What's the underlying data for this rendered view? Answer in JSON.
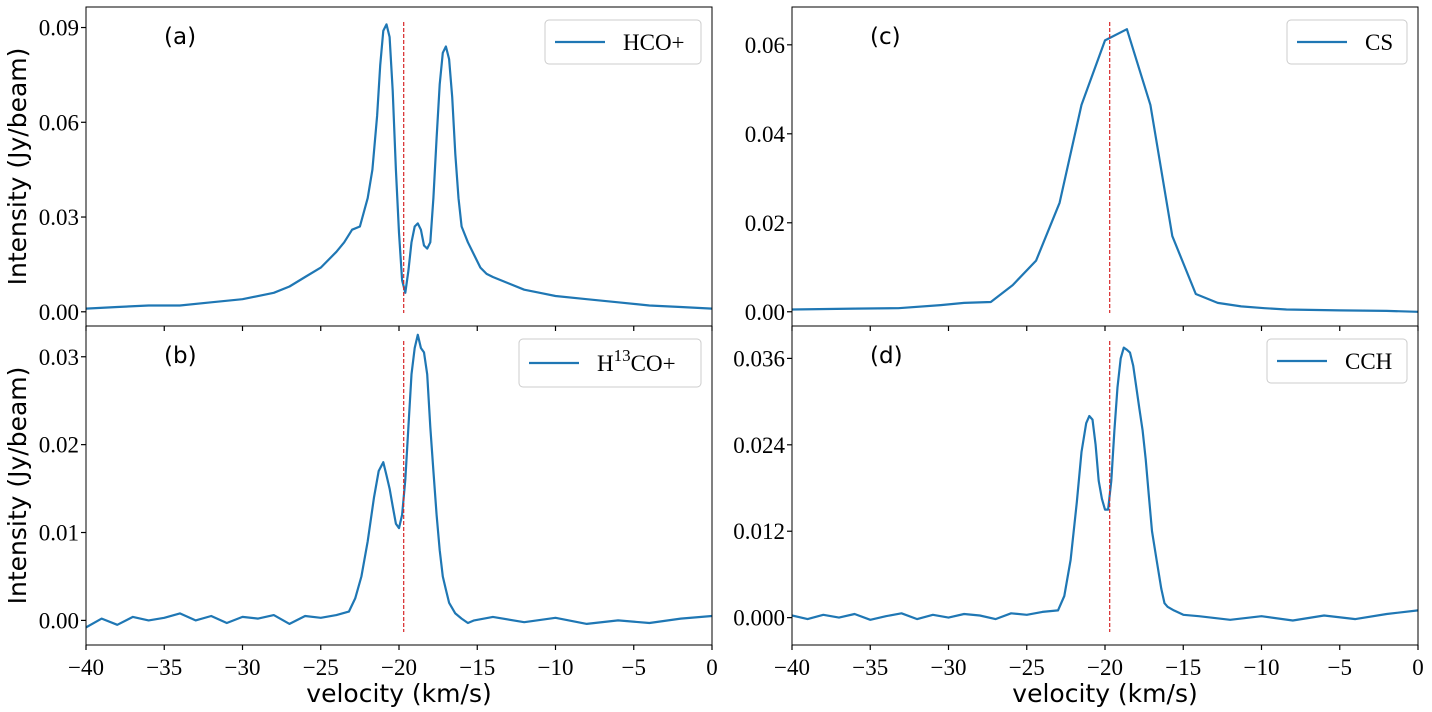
{
  "chart_data": [
    {
      "id": "a",
      "type": "line",
      "panel_label": "(a)",
      "ylabel": "Intensity (Jy/beam)",
      "xlabel": "",
      "xlim": [
        -40,
        0
      ],
      "ylim": [
        -0.0045,
        0.0965
      ],
      "yticks": [
        0,
        0.03,
        0.06,
        0.09
      ],
      "ytick_labels": [
        "0.00",
        "0.03",
        "0.06",
        "0.09"
      ],
      "show_x_tick_labels": false,
      "legend_position": "top-right",
      "vline": -19.7,
      "series": [
        {
          "name": "HCO+",
          "x": [
            -40,
            -38,
            -36,
            -34,
            -32,
            -30,
            -28,
            -27,
            -26,
            -25,
            -24,
            -23.5,
            -23,
            -22.5,
            -22,
            -21.7,
            -21.4,
            -21.2,
            -21.0,
            -20.8,
            -20.6,
            -20.4,
            -20.2,
            -20.0,
            -19.8,
            -19.6,
            -19.4,
            -19.2,
            -19.0,
            -18.8,
            -18.6,
            -18.4,
            -18.2,
            -18.0,
            -17.8,
            -17.6,
            -17.4,
            -17.2,
            -17.0,
            -16.8,
            -16.6,
            -16.4,
            -16.2,
            -16.0,
            -15.6,
            -15.2,
            -14.8,
            -14.4,
            -14,
            -13,
            -12,
            -11,
            -10,
            -8,
            -6,
            -4,
            -2,
            0
          ],
          "y": [
            0.001,
            0.0015,
            0.002,
            0.002,
            0.003,
            0.004,
            0.006,
            0.008,
            0.011,
            0.014,
            0.019,
            0.022,
            0.026,
            0.027,
            0.036,
            0.045,
            0.062,
            0.078,
            0.089,
            0.091,
            0.087,
            0.07,
            0.045,
            0.025,
            0.01,
            0.006,
            0.013,
            0.022,
            0.027,
            0.028,
            0.026,
            0.021,
            0.02,
            0.022,
            0.036,
            0.055,
            0.072,
            0.082,
            0.084,
            0.08,
            0.068,
            0.05,
            0.036,
            0.027,
            0.022,
            0.018,
            0.014,
            0.012,
            0.011,
            0.009,
            0.007,
            0.006,
            0.005,
            0.004,
            0.003,
            0.002,
            0.0015,
            0.001
          ]
        }
      ]
    },
    {
      "id": "b",
      "type": "line",
      "panel_label": "(b)",
      "ylabel": "Intensity (Jy/beam)",
      "xlabel": "velocity (km/s)",
      "xlim": [
        -40,
        0
      ],
      "ylim": [
        -0.0028,
        0.0335
      ],
      "yticks": [
        0,
        0.01,
        0.02,
        0.03
      ],
      "ytick_labels": [
        "0.00",
        "0.01",
        "0.02",
        "0.03"
      ],
      "xticks": [
        -40,
        -35,
        -30,
        -25,
        -20,
        -15,
        -10,
        -5,
        0
      ],
      "xtick_labels": [
        "−40",
        "−35",
        "−30",
        "−25",
        "−20",
        "−15",
        "−10",
        "−5",
        "0"
      ],
      "show_x_tick_labels": true,
      "legend_position": "top-right",
      "vline": -19.7,
      "series": [
        {
          "name": "H13CO+",
          "x": [
            -40,
            -39,
            -38,
            -37,
            -36,
            -35,
            -34,
            -33,
            -32,
            -31,
            -30,
            -29,
            -28,
            -27,
            -26,
            -25,
            -24,
            -23.2,
            -22.8,
            -22.4,
            -22.0,
            -21.6,
            -21.3,
            -21.0,
            -20.8,
            -20.6,
            -20.4,
            -20.2,
            -20.0,
            -19.8,
            -19.6,
            -19.4,
            -19.2,
            -19.0,
            -18.8,
            -18.6,
            -18.4,
            -18.2,
            -18.0,
            -17.8,
            -17.6,
            -17.4,
            -17.2,
            -17.0,
            -16.8,
            -16.4,
            -16.0,
            -15.6,
            -15.2,
            -14,
            -12,
            -10,
            -8,
            -6,
            -4,
            -2,
            0
          ],
          "y": [
            -0.0008,
            0.0002,
            -0.0005,
            0.0004,
            0.0,
            0.0003,
            0.0008,
            0.0,
            0.0005,
            -0.0003,
            0.0004,
            0.0002,
            0.0006,
            -0.0004,
            0.0005,
            0.0003,
            0.0006,
            0.001,
            0.0025,
            0.005,
            0.009,
            0.014,
            0.017,
            0.018,
            0.0165,
            0.015,
            0.013,
            0.011,
            0.0105,
            0.012,
            0.016,
            0.022,
            0.028,
            0.031,
            0.0325,
            0.031,
            0.0305,
            0.028,
            0.022,
            0.017,
            0.012,
            0.008,
            0.005,
            0.0035,
            0.002,
            0.0008,
            0.0002,
            -0.0003,
            0.0,
            0.0004,
            -0.0002,
            0.0003,
            -0.0004,
            0.0,
            -0.0003,
            0.0002,
            0.0005
          ]
        }
      ]
    },
    {
      "id": "c",
      "type": "line",
      "panel_label": "(c)",
      "ylabel": "",
      "xlabel": "",
      "xlim": [
        -40,
        0
      ],
      "ylim": [
        -0.0032,
        0.0685
      ],
      "yticks": [
        0,
        0.02,
        0.04,
        0.06
      ],
      "ytick_labels": [
        "0.00",
        "0.02",
        "0.04",
        "0.06"
      ],
      "show_x_tick_labels": false,
      "legend_position": "top-right",
      "vline": -19.7,
      "series": [
        {
          "name": "CS",
          "x": [
            -40,
            -36,
            -33.2,
            -30.5,
            -29,
            -27.3,
            -25.9,
            -24.4,
            -22.9,
            -21.5,
            -20.0,
            -18.6,
            -17.1,
            -15.7,
            -14.2,
            -12.8,
            -11.3,
            -9.8,
            -8.4,
            -5,
            -2,
            0
          ],
          "y": [
            0.0005,
            0.0007,
            0.0008,
            0.0015,
            0.002,
            0.0022,
            0.006,
            0.0115,
            0.0245,
            0.0465,
            0.061,
            0.0635,
            0.0465,
            0.017,
            0.004,
            0.002,
            0.0012,
            0.0008,
            0.0005,
            0.0003,
            0.0002,
            0.0
          ]
        }
      ]
    },
    {
      "id": "d",
      "type": "line",
      "panel_label": "(d)",
      "ylabel": "",
      "xlabel": "velocity (km/s)",
      "xlim": [
        -40,
        0
      ],
      "ylim": [
        -0.0038,
        0.0405
      ],
      "yticks": [
        0,
        0.012,
        0.024,
        0.036
      ],
      "ytick_labels": [
        "0.000",
        "0.012",
        "0.024",
        "0.036"
      ],
      "xticks": [
        -40,
        -35,
        -30,
        -25,
        -20,
        -15,
        -10,
        -5,
        0
      ],
      "xtick_labels": [
        "−40",
        "−35",
        "−30",
        "−25",
        "−20",
        "−15",
        "−10",
        "−5",
        "0"
      ],
      "show_x_tick_labels": true,
      "legend_position": "top-right",
      "vline": -19.7,
      "series": [
        {
          "name": "CCH",
          "x": [
            -40,
            -39,
            -38,
            -37,
            -36,
            -35,
            -34,
            -33,
            -32,
            -31,
            -30,
            -29,
            -28,
            -27,
            -26,
            -25,
            -24,
            -23.0,
            -22.6,
            -22.2,
            -21.8,
            -21.5,
            -21.2,
            -21.0,
            -20.8,
            -20.6,
            -20.4,
            -20.2,
            -20.0,
            -19.8,
            -19.6,
            -19.4,
            -19.2,
            -19.0,
            -18.8,
            -18.6,
            -18.4,
            -18.2,
            -18.0,
            -17.8,
            -17.6,
            -17.4,
            -17.2,
            -17.0,
            -16.7,
            -16.4,
            -16.2,
            -16.0,
            -15.6,
            -15.0,
            -14,
            -12,
            -10,
            -8,
            -6,
            -4,
            -2,
            0
          ],
          "y": [
            0.0003,
            -0.0002,
            0.0004,
            0.0,
            0.0005,
            -0.0003,
            0.0002,
            0.0006,
            -0.0002,
            0.0004,
            0.0,
            0.0005,
            0.0003,
            -0.0002,
            0.0006,
            0.0004,
            0.0008,
            0.001,
            0.003,
            0.008,
            0.016,
            0.023,
            0.027,
            0.028,
            0.0275,
            0.024,
            0.019,
            0.0165,
            0.015,
            0.015,
            0.019,
            0.026,
            0.032,
            0.036,
            0.0375,
            0.0372,
            0.0368,
            0.035,
            0.032,
            0.029,
            0.026,
            0.022,
            0.017,
            0.012,
            0.008,
            0.004,
            0.002,
            0.0015,
            0.001,
            0.0004,
            0.0002,
            -0.0003,
            0.0002,
            -0.0004,
            0.0003,
            -0.0002,
            0.0005,
            0.001
          ]
        }
      ]
    }
  ],
  "legend_labels": {
    "a": "HCO+",
    "b_prefix": "H",
    "b_sup": "13",
    "b_suffix": "CO+",
    "c": "CS",
    "d": "CCH"
  },
  "colors": {
    "series": "#1f77b4",
    "vline": "#d62728"
  }
}
